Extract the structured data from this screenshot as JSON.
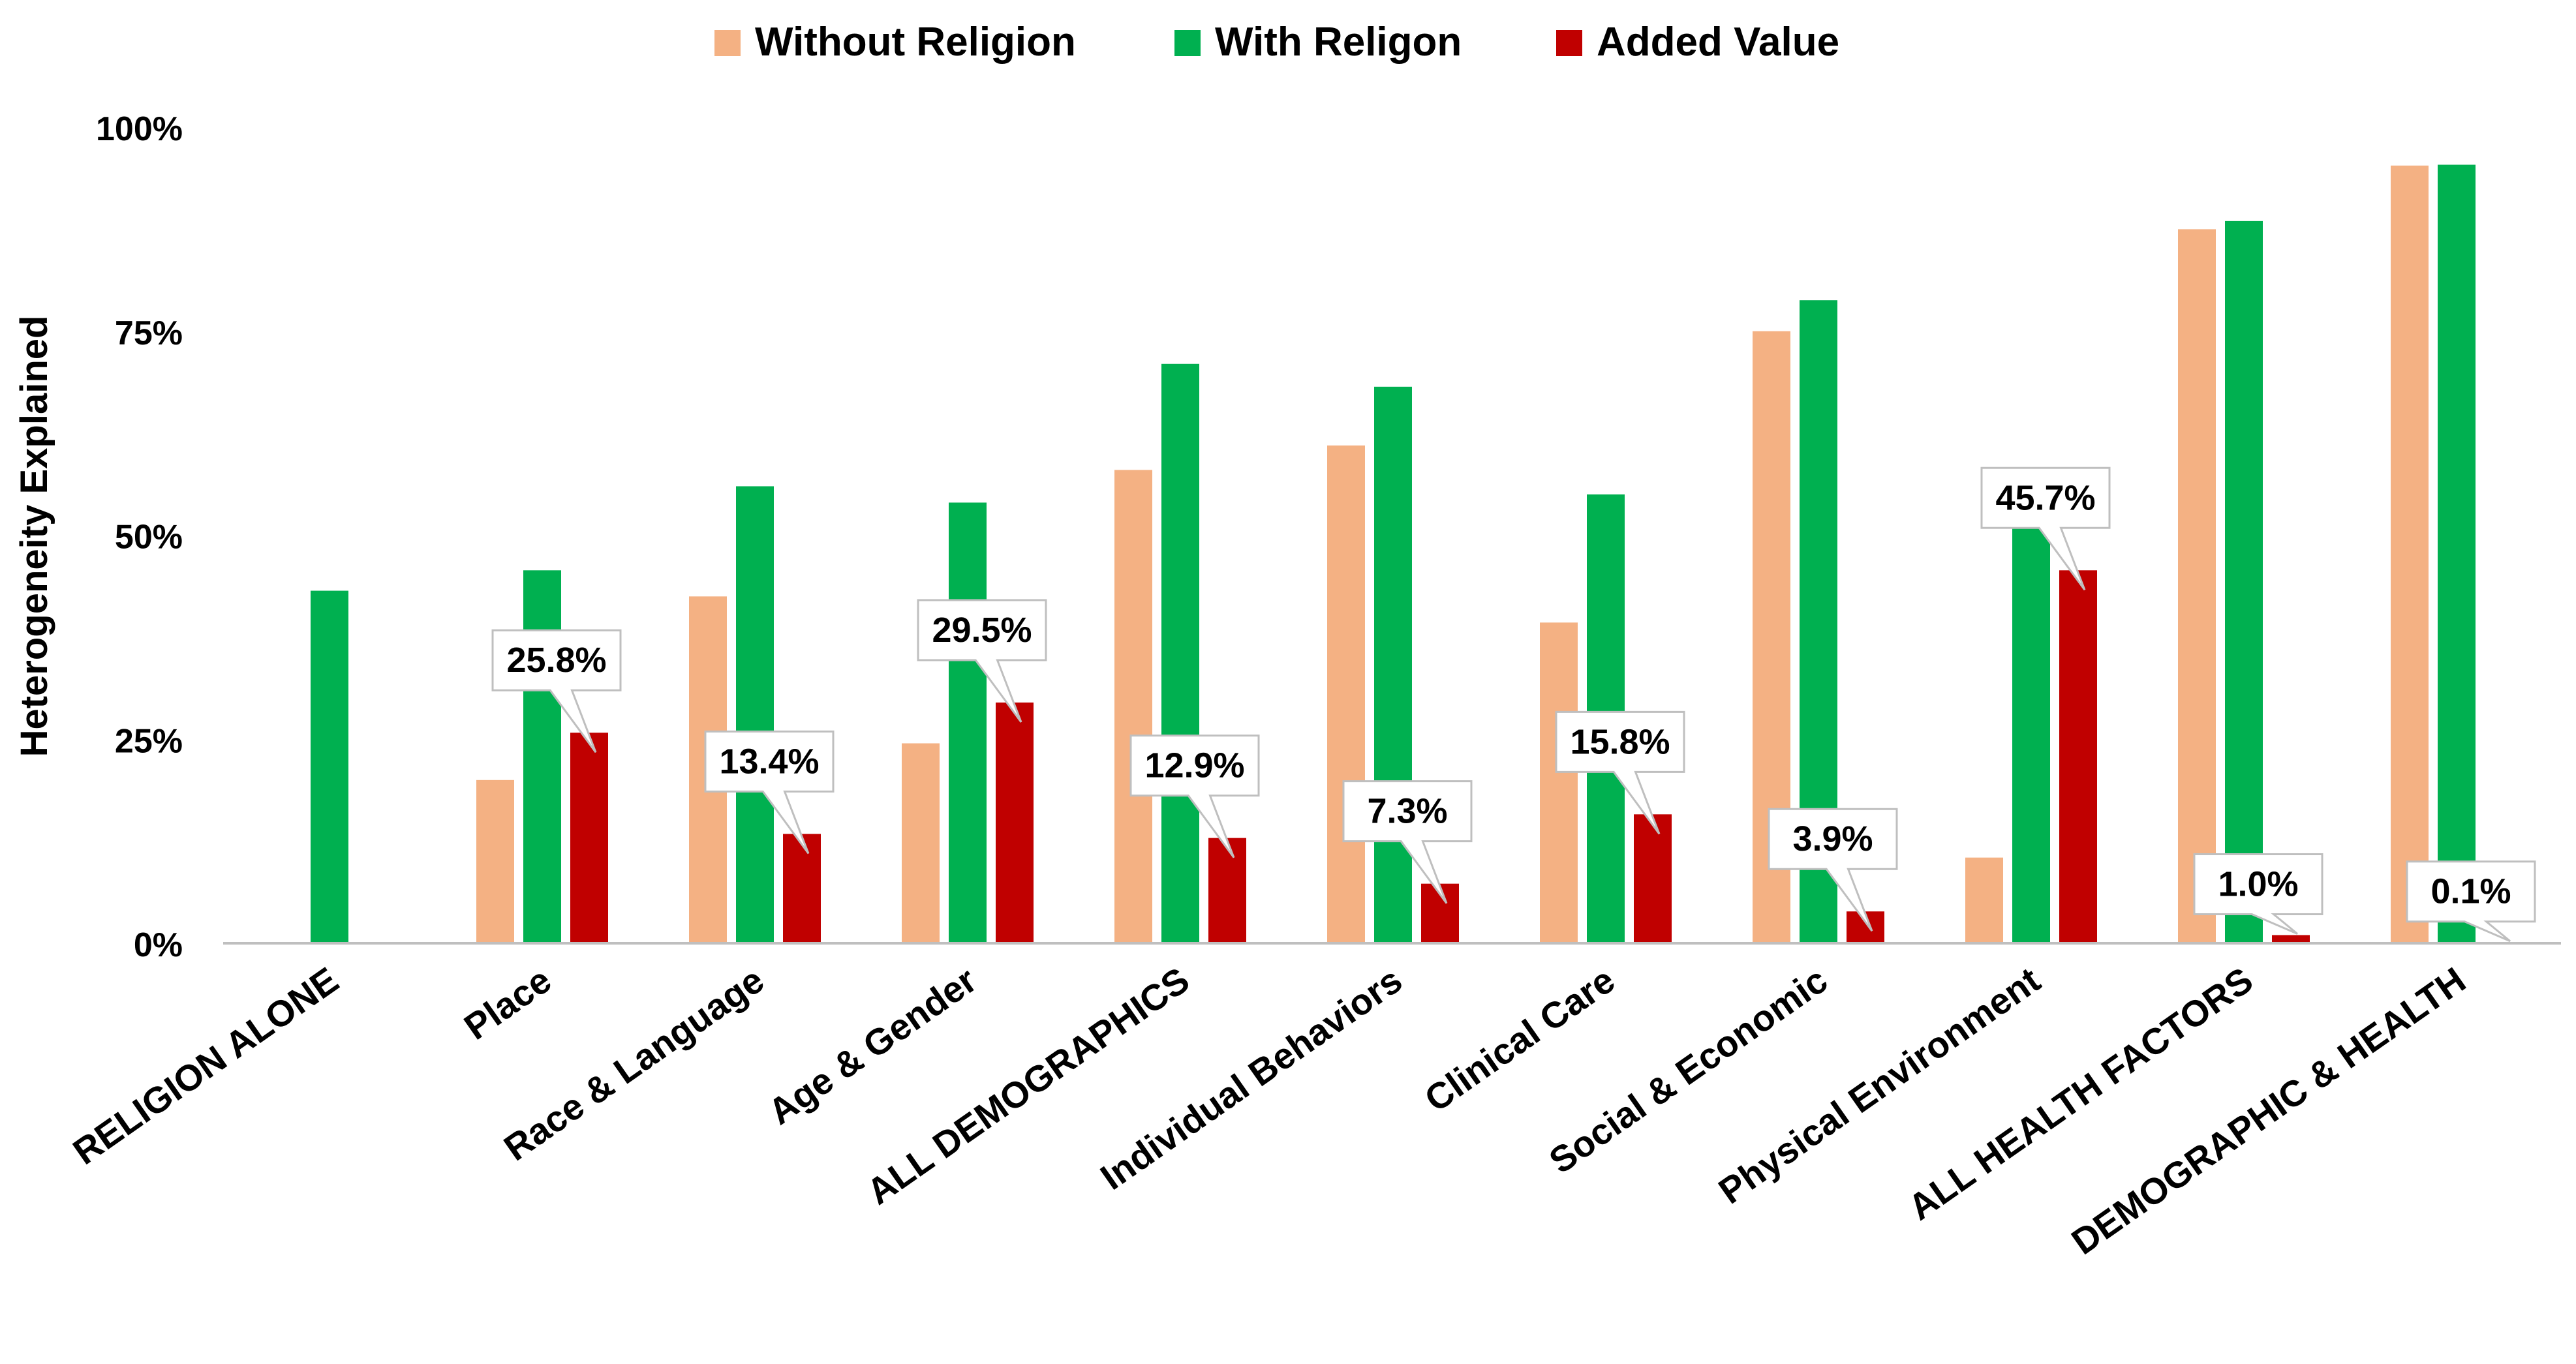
{
  "chart_data": {
    "type": "bar",
    "title": "",
    "xlabel": "",
    "ylabel": "Heterogeneity Explained",
    "ylim": [
      0,
      100
    ],
    "yticks": [
      {
        "value": 0,
        "label": "0%"
      },
      {
        "value": 25,
        "label": "25%"
      },
      {
        "value": 50,
        "label": "50%"
      },
      {
        "value": 75,
        "label": "75%"
      },
      {
        "value": 100,
        "label": "100%"
      }
    ],
    "grid": false,
    "legend_position": "top-center",
    "categories": [
      "RELIGION ALONE",
      "Place",
      "Race & Language",
      "Age & Gender",
      "ALL DEMOGRAPHICS",
      "Individual Behaviors",
      "Clinical Care",
      "Social & Economic",
      "Physical Environment",
      "ALL HEALTH FACTORS",
      "DEMOGRAPHIC & HEALTH"
    ],
    "series": [
      {
        "name": "Without Religion",
        "color": "#F4B183",
        "values": [
          null,
          20,
          42.5,
          24.5,
          58,
          61,
          39.3,
          75,
          10.5,
          87.5,
          95.3
        ]
      },
      {
        "name": "With Religon",
        "color": "#00B050",
        "values": [
          43.2,
          45.7,
          56,
          54,
          71,
          68.2,
          55,
          78.8,
          56.2,
          88.5,
          95.4
        ]
      },
      {
        "name": "Added Value",
        "color": "#C00000",
        "values": [
          null,
          25.8,
          13.4,
          29.5,
          12.9,
          7.3,
          15.8,
          3.9,
          45.7,
          1.0,
          0.1
        ]
      }
    ],
    "annotations": [
      "",
      "25.8%",
      "13.4%",
      "29.5%",
      "12.9%",
      "7.3%",
      "15.8%",
      "3.9%",
      "45.7%",
      "1.0%",
      "0.1%"
    ]
  }
}
